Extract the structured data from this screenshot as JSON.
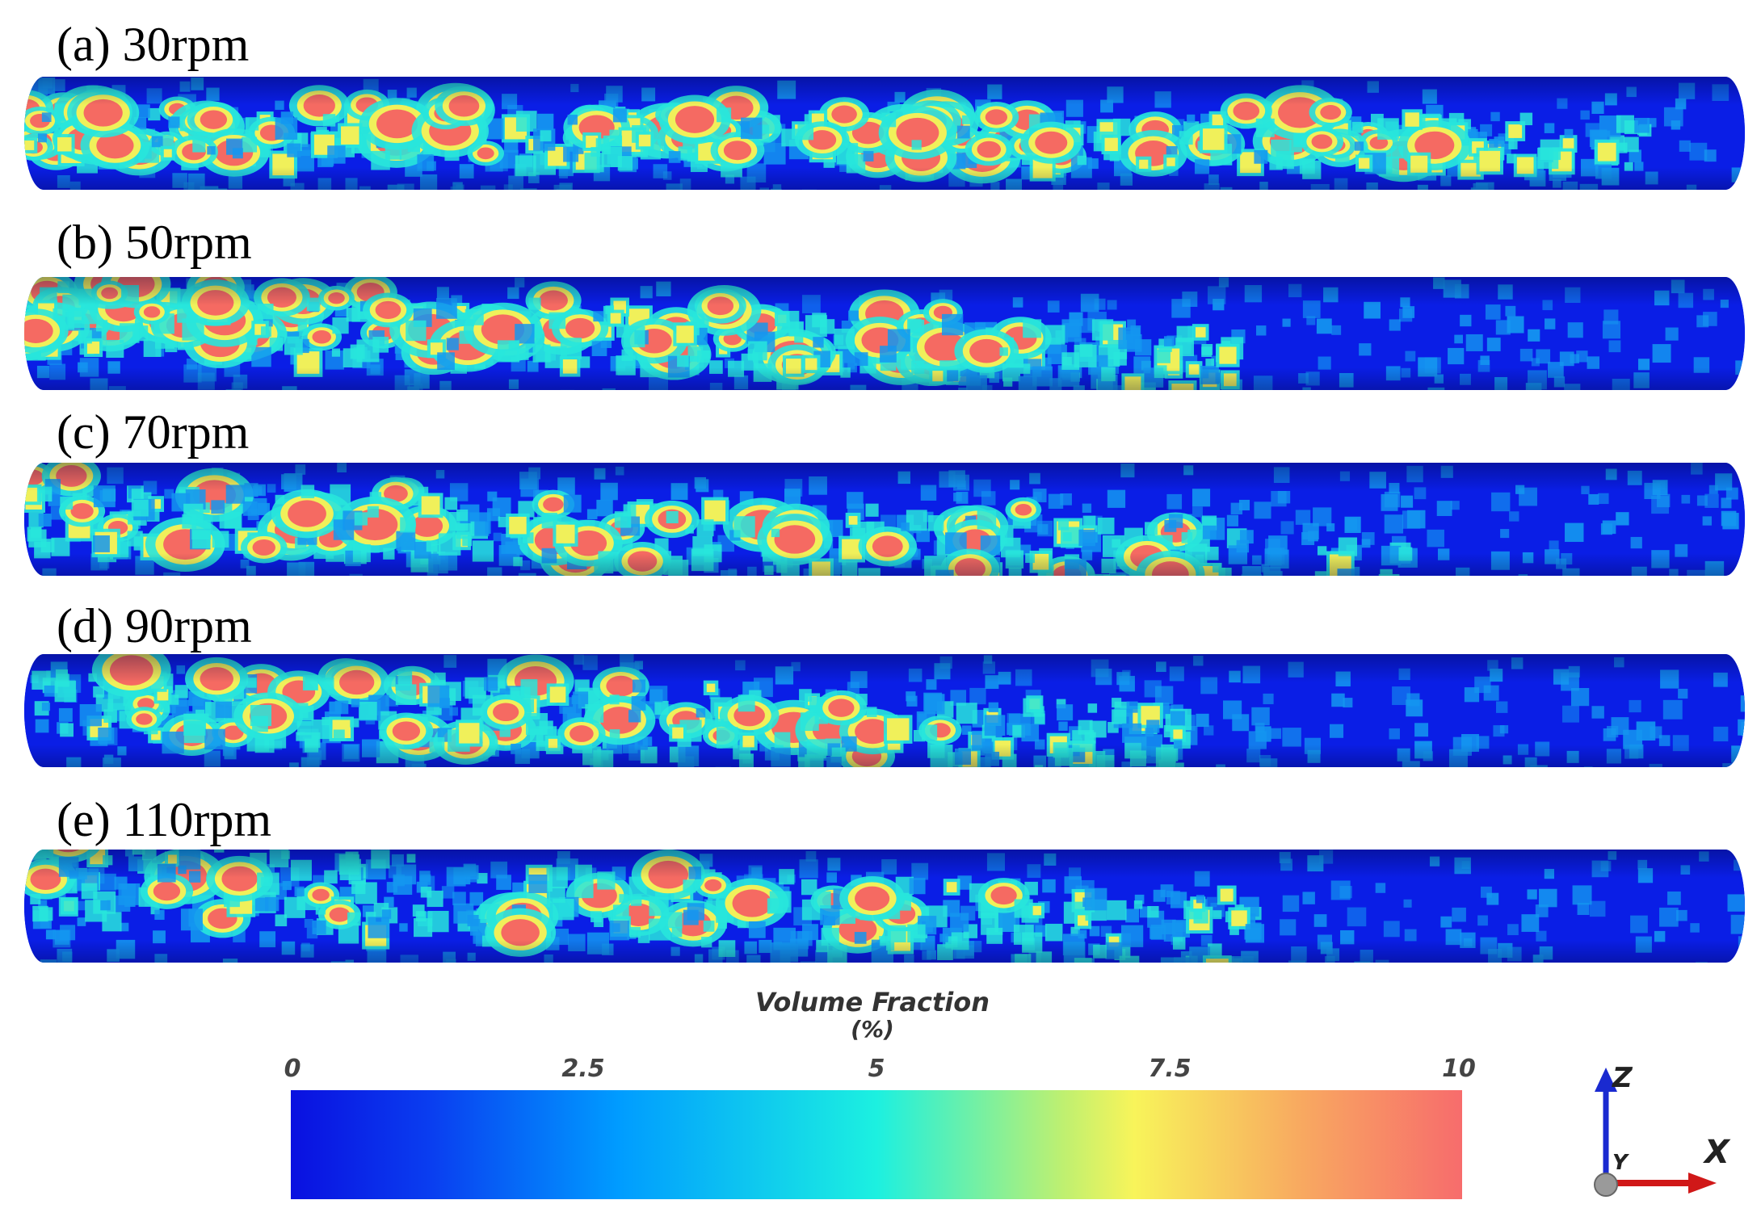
{
  "panels": [
    {
      "label": "(a) 30rpm",
      "speed_rpm": 30
    },
    {
      "label": "(b) 50rpm",
      "speed_rpm": 50
    },
    {
      "label": "(c) 70rpm",
      "speed_rpm": 70
    },
    {
      "label": "(d) 90rpm",
      "speed_rpm": 90
    },
    {
      "label": "(e) 110rpm",
      "speed_rpm": 110
    }
  ],
  "colorbar": {
    "title": "Volume Fraction",
    "unit": "(%)",
    "ticks": [
      "0",
      "2.5",
      "5",
      "7.5",
      "10"
    ],
    "min": 0,
    "max": 10,
    "colors": [
      "#0a10e0",
      "#00a8ff",
      "#1cf0e0",
      "#f4f45a",
      "#f76c6c"
    ]
  },
  "axes": {
    "z_label": "Z",
    "y_label": "Y",
    "x_label": "X",
    "z_color": "#1a2ad0",
    "x_color": "#d01818"
  },
  "pipe_colors": {
    "background": "#0a1ee6",
    "low": "#1496f0",
    "mid": "#28e6dc",
    "high_mid": "#f0f05a",
    "high": "#f56a62"
  }
}
